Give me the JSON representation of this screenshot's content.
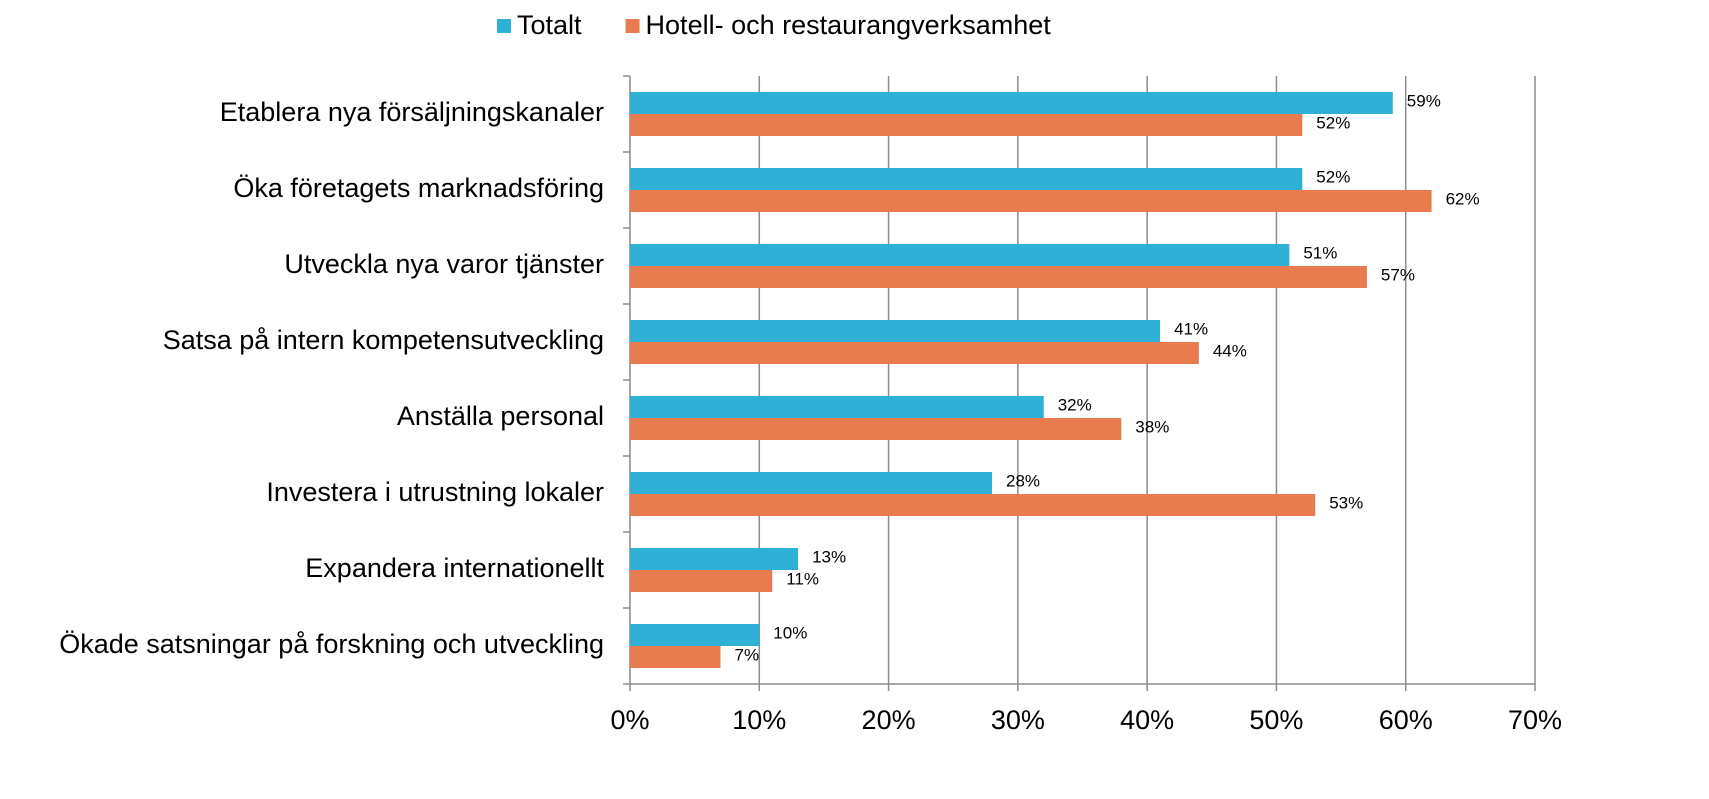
{
  "chart_data": {
    "type": "bar",
    "orientation": "horizontal",
    "categories": [
      "Etablera nya försäljningskanaler",
      "Öka företagets marknadsföring",
      "Utveckla nya varor tjänster",
      "Satsa på intern kompetensutveckling",
      "Anställa personal",
      "Investera i utrustning lokaler",
      "Expandera internationellt",
      "Ökade satsningar på forskning och utveckling"
    ],
    "series": [
      {
        "name": "Totalt",
        "color": "#2eb0d7",
        "values": [
          59,
          52,
          51,
          41,
          32,
          28,
          13,
          10
        ],
        "value_labels": [
          "59%",
          "52%",
          "51%",
          "41%",
          "32%",
          "28%",
          "13%",
          "10%"
        ]
      },
      {
        "name": "Hotell- och restaurangverksamhet",
        "color": "#e97c4f",
        "values": [
          52,
          62,
          57,
          44,
          38,
          53,
          11,
          7
        ],
        "value_labels": [
          "52%",
          "62%",
          "57%",
          "44%",
          "38%",
          "53%",
          "11%",
          "7%"
        ]
      }
    ],
    "xlim": [
      0,
      70
    ],
    "xticks": [
      {
        "value": 0,
        "label": "0%"
      },
      {
        "value": 10,
        "label": "10%"
      },
      {
        "value": 20,
        "label": "20%"
      },
      {
        "value": 30,
        "label": "30%"
      },
      {
        "value": 40,
        "label": "40%"
      },
      {
        "value": 50,
        "label": "50%"
      },
      {
        "value": 60,
        "label": "60%"
      },
      {
        "value": 70,
        "label": "70%"
      }
    ],
    "grid": true,
    "legend": "top"
  }
}
